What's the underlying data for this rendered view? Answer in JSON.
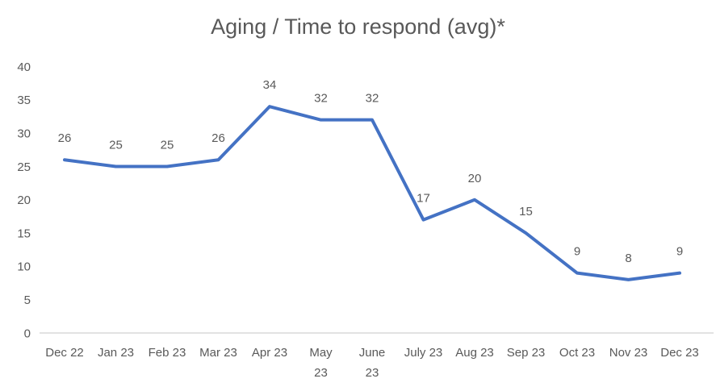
{
  "chart_data": {
    "type": "line",
    "title": "Aging / Time to respond (avg)*",
    "categories": [
      "Dec 22",
      "Jan 23",
      "Feb 23",
      "Mar 23",
      "Apr 23",
      "May 23",
      "June 23",
      "July 23",
      "Aug 23",
      "Sep 23",
      "Oct 23",
      "Nov 23",
      "Dec 23"
    ],
    "values": [
      26,
      25,
      25,
      26,
      34,
      32,
      32,
      17,
      20,
      15,
      9,
      8,
      9
    ],
    "xlabel": "",
    "ylabel": "",
    "ylim": [
      0,
      40
    ],
    "yticks": [
      0,
      5,
      10,
      15,
      20,
      25,
      30,
      35,
      40
    ],
    "show_data_labels": true,
    "grid": false,
    "legend_position": "none",
    "wrapped_category_indices": [
      5,
      6
    ],
    "colors": {
      "line": "#4472C4",
      "title_text": "#595959",
      "label_text": "#595959",
      "tick_text": "#595959",
      "axis_line": "#D9D9D9",
      "background": "#FFFFFF"
    }
  }
}
